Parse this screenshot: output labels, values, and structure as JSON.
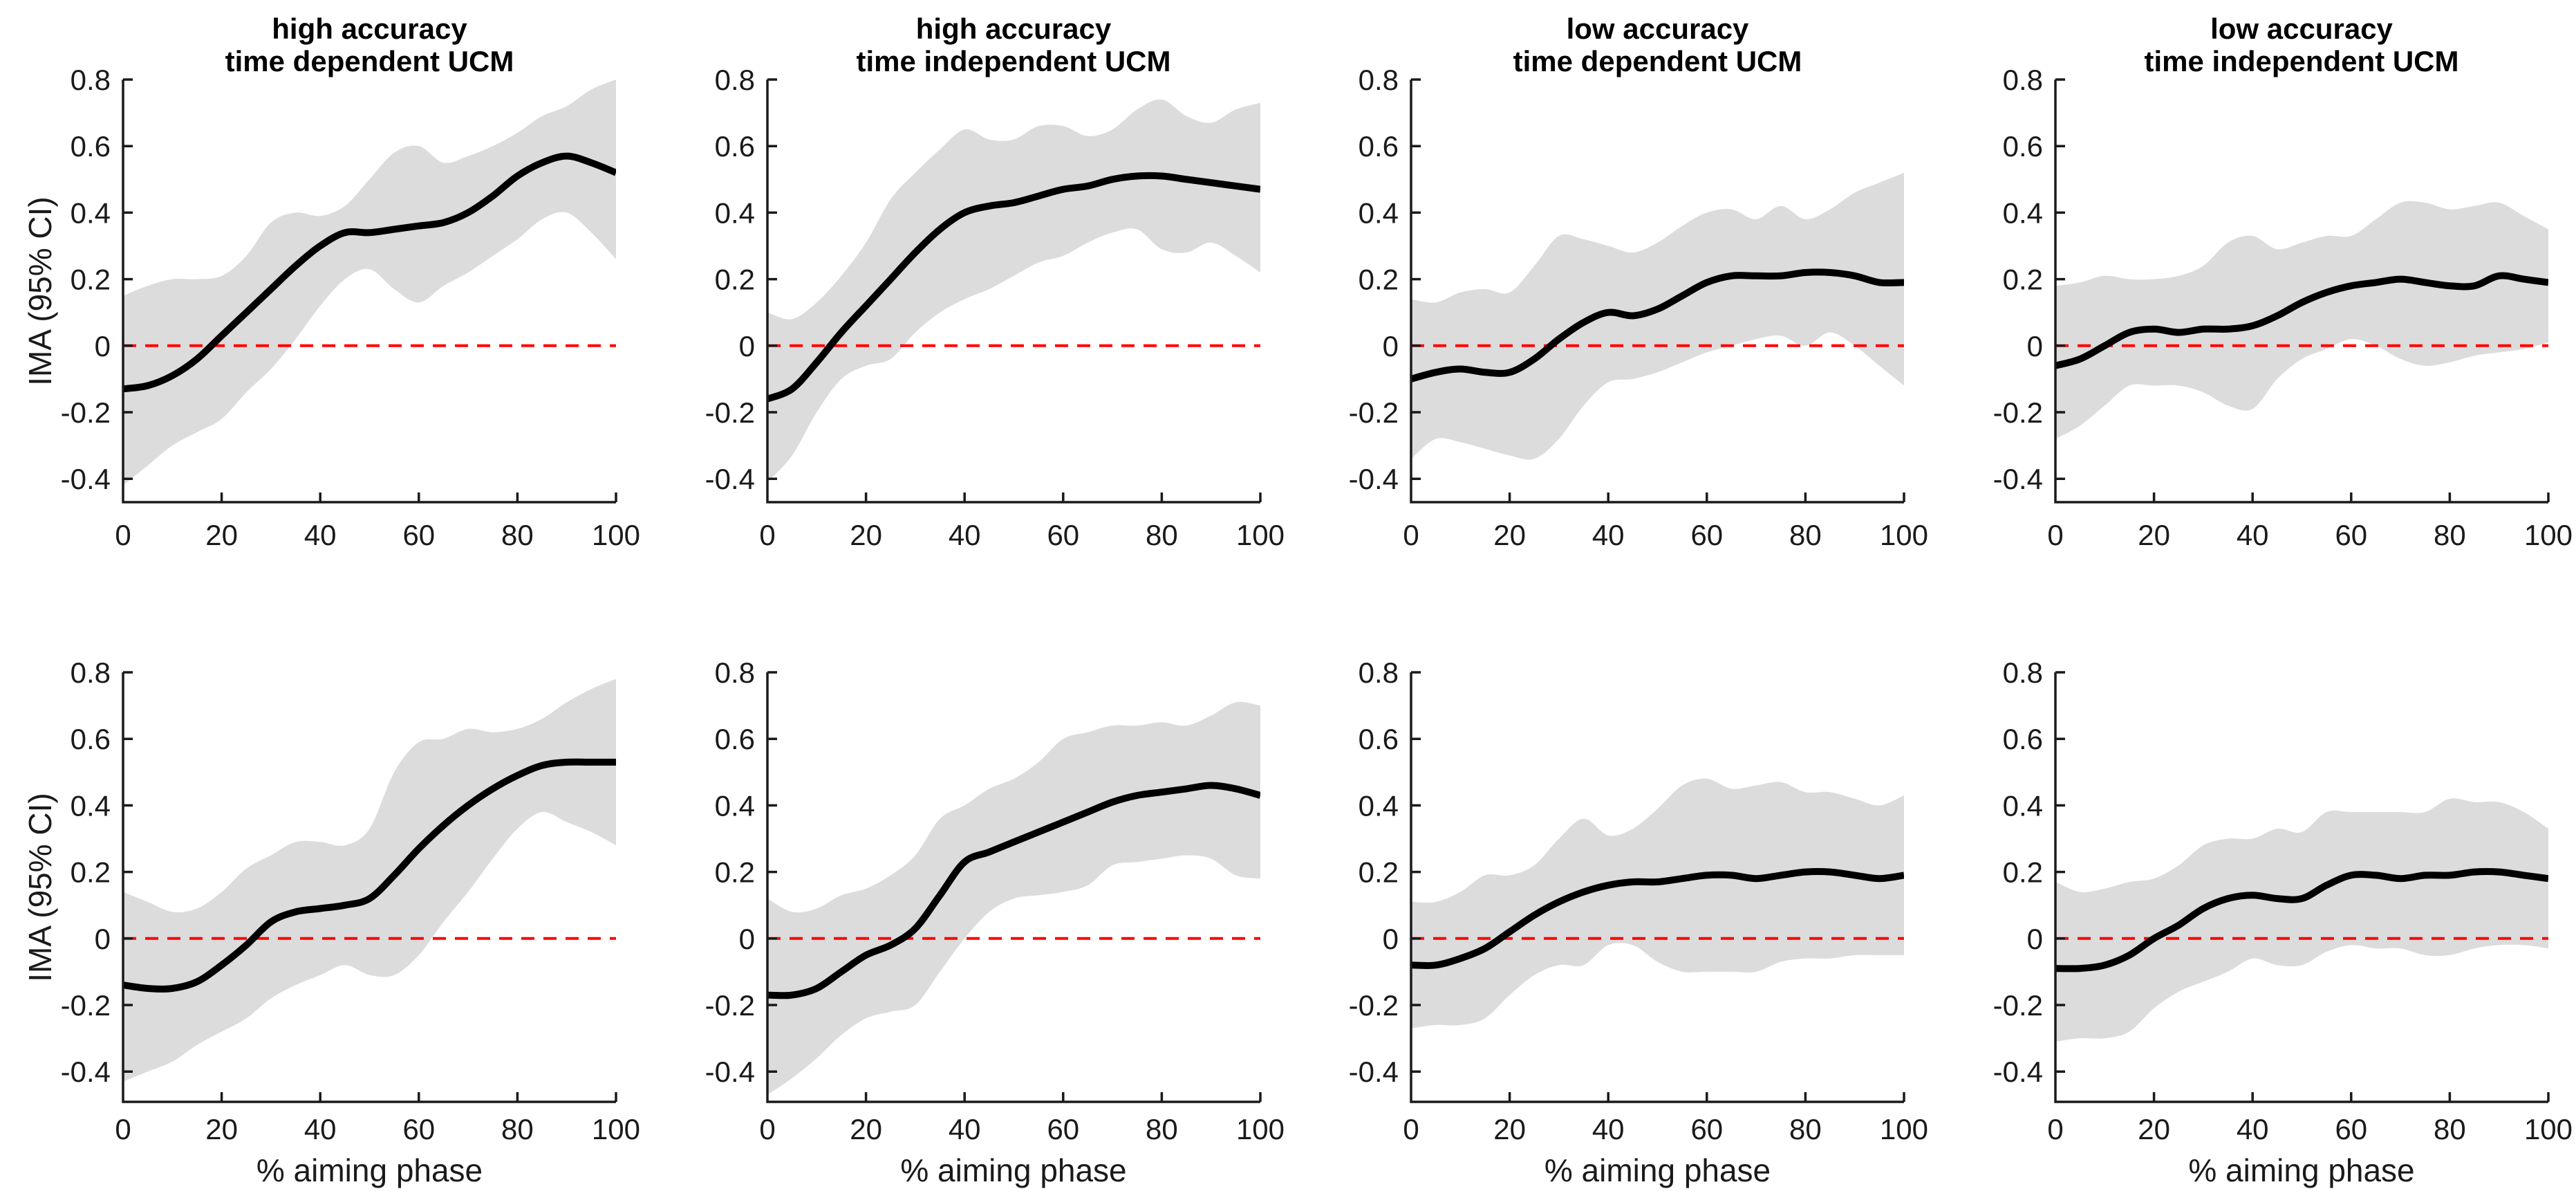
{
  "figure": {
    "ylabel": "IMA (95% CI)",
    "xlabel": "% aiming phase",
    "background": "#ffffff",
    "colors": {
      "band": "#dcdcdc",
      "mean": "#000000",
      "zero_line": "#ff0000",
      "axis": "#1a1a1a",
      "text": "#1a1a1a",
      "title": "#000000"
    },
    "axes": {
      "xlim": [
        0,
        100
      ],
      "ylim": [
        -0.47,
        0.8
      ],
      "xticks": [
        0,
        20,
        40,
        60,
        80,
        100
      ],
      "xtick_labels": [
        "0",
        "20",
        "40",
        "60",
        "80",
        "100"
      ],
      "yticks": [
        0.8,
        0.6,
        0.4,
        0.2,
        0,
        -0.2,
        -0.4
      ],
      "ytick_labels": [
        "0.8",
        "0.6",
        "0.4",
        "0.2",
        "0",
        "-0.2",
        "-0.4"
      ],
      "grid": false,
      "zero_reference": {
        "value": 0,
        "style": "dashed",
        "color": "#ff0000"
      }
    }
  },
  "chart_data": [
    {
      "id": "top-high-accuracy-time-dependent",
      "type": "area",
      "row": 0,
      "col": 0,
      "title_lines": [
        "high accuracy",
        "time dependent UCM"
      ],
      "x": [
        0,
        5,
        10,
        15,
        20,
        25,
        30,
        35,
        40,
        45,
        50,
        55,
        60,
        65,
        70,
        75,
        80,
        85,
        90,
        95,
        100
      ],
      "series": [
        {
          "name": "mean IMA",
          "values": [
            -0.13,
            -0.12,
            -0.09,
            -0.04,
            0.03,
            0.1,
            0.17,
            0.24,
            0.3,
            0.34,
            0.34,
            0.35,
            0.36,
            0.37,
            0.4,
            0.45,
            0.51,
            0.55,
            0.57,
            0.55,
            0.52
          ]
        },
        {
          "name": "95% CI upper",
          "values": [
            0.15,
            0.18,
            0.2,
            0.2,
            0.21,
            0.27,
            0.37,
            0.4,
            0.39,
            0.42,
            0.5,
            0.58,
            0.6,
            0.55,
            0.57,
            0.6,
            0.64,
            0.69,
            0.72,
            0.77,
            0.8
          ]
        },
        {
          "name": "95% CI lower",
          "values": [
            -0.42,
            -0.36,
            -0.3,
            -0.26,
            -0.22,
            -0.14,
            -0.07,
            0.02,
            0.12,
            0.2,
            0.23,
            0.17,
            0.13,
            0.18,
            0.22,
            0.27,
            0.32,
            0.38,
            0.4,
            0.34,
            0.26
          ]
        }
      ]
    },
    {
      "id": "top-high-accuracy-time-independent",
      "type": "area",
      "row": 0,
      "col": 1,
      "title_lines": [
        "high accuracy",
        "time independent UCM"
      ],
      "x": [
        0,
        5,
        10,
        15,
        20,
        25,
        30,
        35,
        40,
        45,
        50,
        55,
        60,
        65,
        70,
        75,
        80,
        85,
        90,
        95,
        100
      ],
      "series": [
        {
          "name": "mean IMA",
          "values": [
            -0.16,
            -0.13,
            -0.05,
            0.04,
            0.12,
            0.2,
            0.28,
            0.35,
            0.4,
            0.42,
            0.43,
            0.45,
            0.47,
            0.48,
            0.5,
            0.51,
            0.51,
            0.5,
            0.49,
            0.48,
            0.47
          ]
        },
        {
          "name": "95% CI upper",
          "values": [
            0.1,
            0.08,
            0.13,
            0.21,
            0.31,
            0.44,
            0.52,
            0.59,
            0.65,
            0.62,
            0.62,
            0.66,
            0.66,
            0.63,
            0.65,
            0.71,
            0.74,
            0.69,
            0.67,
            0.71,
            0.73
          ]
        },
        {
          "name": "95% CI lower",
          "values": [
            -0.41,
            -0.33,
            -0.2,
            -0.1,
            -0.06,
            -0.04,
            0.04,
            0.1,
            0.14,
            0.17,
            0.21,
            0.25,
            0.27,
            0.31,
            0.34,
            0.35,
            0.29,
            0.28,
            0.31,
            0.27,
            0.22
          ]
        }
      ]
    },
    {
      "id": "top-low-accuracy-time-dependent",
      "type": "area",
      "row": 0,
      "col": 2,
      "title_lines": [
        "low accuracy",
        "time dependent UCM"
      ],
      "x": [
        0,
        5,
        10,
        15,
        20,
        25,
        30,
        35,
        40,
        45,
        50,
        55,
        60,
        65,
        70,
        75,
        80,
        85,
        90,
        95,
        100
      ],
      "series": [
        {
          "name": "mean IMA",
          "values": [
            -0.1,
            -0.08,
            -0.07,
            -0.08,
            -0.08,
            -0.04,
            0.02,
            0.07,
            0.1,
            0.09,
            0.11,
            0.15,
            0.19,
            0.21,
            0.21,
            0.21,
            0.22,
            0.22,
            0.21,
            0.19,
            0.19
          ]
        },
        {
          "name": "95% CI upper",
          "values": [
            0.14,
            0.13,
            0.16,
            0.17,
            0.16,
            0.24,
            0.33,
            0.32,
            0.3,
            0.28,
            0.31,
            0.36,
            0.4,
            0.41,
            0.38,
            0.42,
            0.38,
            0.41,
            0.46,
            0.49,
            0.52
          ]
        },
        {
          "name": "95% CI lower",
          "values": [
            -0.34,
            -0.28,
            -0.29,
            -0.31,
            -0.33,
            -0.34,
            -0.28,
            -0.18,
            -0.11,
            -0.1,
            -0.08,
            -0.05,
            -0.02,
            0.0,
            0.02,
            0.03,
            0.0,
            0.04,
            0.0,
            -0.06,
            -0.12
          ]
        }
      ]
    },
    {
      "id": "top-low-accuracy-time-independent",
      "type": "area",
      "row": 0,
      "col": 3,
      "title_lines": [
        "low accuracy",
        "time independent UCM"
      ],
      "x": [
        0,
        5,
        10,
        15,
        20,
        25,
        30,
        35,
        40,
        45,
        50,
        55,
        60,
        65,
        70,
        75,
        80,
        85,
        90,
        95,
        100
      ],
      "series": [
        {
          "name": "mean IMA",
          "values": [
            -0.06,
            -0.04,
            0.0,
            0.04,
            0.05,
            0.04,
            0.05,
            0.05,
            0.06,
            0.09,
            0.13,
            0.16,
            0.18,
            0.19,
            0.2,
            0.19,
            0.18,
            0.18,
            0.21,
            0.2,
            0.19
          ]
        },
        {
          "name": "95% CI upper",
          "values": [
            0.18,
            0.19,
            0.21,
            0.2,
            0.2,
            0.21,
            0.24,
            0.31,
            0.33,
            0.29,
            0.31,
            0.33,
            0.33,
            0.38,
            0.43,
            0.43,
            0.41,
            0.42,
            0.43,
            0.39,
            0.35
          ]
        },
        {
          "name": "95% CI lower",
          "values": [
            -0.28,
            -0.24,
            -0.18,
            -0.12,
            -0.12,
            -0.12,
            -0.14,
            -0.18,
            -0.19,
            -0.1,
            -0.04,
            -0.01,
            0.02,
            0.0,
            -0.04,
            -0.06,
            -0.05,
            -0.03,
            -0.02,
            -0.01,
            0.01
          ]
        }
      ]
    },
    {
      "id": "bottom-high-accuracy-time-dependent",
      "type": "area",
      "row": 1,
      "col": 0,
      "x": [
        0,
        5,
        10,
        15,
        20,
        25,
        30,
        35,
        40,
        45,
        50,
        55,
        60,
        65,
        70,
        75,
        80,
        85,
        90,
        95,
        100
      ],
      "series": [
        {
          "name": "mean IMA",
          "values": [
            -0.14,
            -0.15,
            -0.15,
            -0.13,
            -0.08,
            -0.02,
            0.05,
            0.08,
            0.09,
            0.1,
            0.12,
            0.19,
            0.27,
            0.34,
            0.4,
            0.45,
            0.49,
            0.52,
            0.53,
            0.53,
            0.53
          ]
        },
        {
          "name": "95% CI upper",
          "values": [
            0.14,
            0.11,
            0.08,
            0.09,
            0.14,
            0.21,
            0.25,
            0.29,
            0.29,
            0.28,
            0.33,
            0.5,
            0.59,
            0.6,
            0.63,
            0.62,
            0.63,
            0.66,
            0.71,
            0.75,
            0.78
          ]
        },
        {
          "name": "95% CI lower",
          "values": [
            -0.43,
            -0.4,
            -0.37,
            -0.32,
            -0.28,
            -0.24,
            -0.18,
            -0.14,
            -0.11,
            -0.08,
            -0.11,
            -0.11,
            -0.05,
            0.05,
            0.14,
            0.24,
            0.33,
            0.38,
            0.35,
            0.32,
            0.28
          ]
        }
      ]
    },
    {
      "id": "bottom-high-accuracy-time-independent",
      "type": "area",
      "row": 1,
      "col": 1,
      "x": [
        0,
        5,
        10,
        15,
        20,
        25,
        30,
        35,
        40,
        45,
        50,
        55,
        60,
        65,
        70,
        75,
        80,
        85,
        90,
        95,
        100
      ],
      "series": [
        {
          "name": "mean IMA",
          "values": [
            -0.17,
            -0.17,
            -0.15,
            -0.1,
            -0.05,
            -0.02,
            0.03,
            0.13,
            0.23,
            0.26,
            0.29,
            0.32,
            0.35,
            0.38,
            0.41,
            0.43,
            0.44,
            0.45,
            0.46,
            0.45,
            0.43
          ]
        },
        {
          "name": "95% CI upper",
          "values": [
            0.12,
            0.08,
            0.09,
            0.13,
            0.15,
            0.19,
            0.25,
            0.36,
            0.4,
            0.45,
            0.48,
            0.53,
            0.6,
            0.62,
            0.64,
            0.64,
            0.65,
            0.64,
            0.67,
            0.71,
            0.7
          ]
        },
        {
          "name": "95% CI lower",
          "values": [
            -0.47,
            -0.42,
            -0.36,
            -0.29,
            -0.24,
            -0.22,
            -0.2,
            -0.1,
            0.0,
            0.08,
            0.12,
            0.13,
            0.14,
            0.16,
            0.22,
            0.23,
            0.24,
            0.25,
            0.24,
            0.19,
            0.18
          ]
        }
      ]
    },
    {
      "id": "bottom-low-accuracy-time-dependent",
      "type": "area",
      "row": 1,
      "col": 2,
      "x": [
        0,
        5,
        10,
        15,
        20,
        25,
        30,
        35,
        40,
        45,
        50,
        55,
        60,
        65,
        70,
        75,
        80,
        85,
        90,
        95,
        100
      ],
      "series": [
        {
          "name": "mean IMA",
          "values": [
            -0.08,
            -0.08,
            -0.06,
            -0.03,
            0.02,
            0.07,
            0.11,
            0.14,
            0.16,
            0.17,
            0.17,
            0.18,
            0.19,
            0.19,
            0.18,
            0.19,
            0.2,
            0.2,
            0.19,
            0.18,
            0.19
          ]
        },
        {
          "name": "95% CI upper",
          "values": [
            0.11,
            0.11,
            0.14,
            0.19,
            0.19,
            0.22,
            0.3,
            0.36,
            0.31,
            0.33,
            0.39,
            0.46,
            0.48,
            0.45,
            0.46,
            0.47,
            0.44,
            0.44,
            0.42,
            0.4,
            0.43
          ]
        },
        {
          "name": "95% CI lower",
          "values": [
            -0.27,
            -0.26,
            -0.26,
            -0.24,
            -0.17,
            -0.11,
            -0.08,
            -0.08,
            -0.02,
            -0.02,
            -0.07,
            -0.1,
            -0.1,
            -0.1,
            -0.1,
            -0.07,
            -0.06,
            -0.06,
            -0.05,
            -0.05,
            -0.05
          ]
        }
      ]
    },
    {
      "id": "bottom-low-accuracy-time-independent",
      "type": "area",
      "row": 1,
      "col": 3,
      "x": [
        0,
        5,
        10,
        15,
        20,
        25,
        30,
        35,
        40,
        45,
        50,
        55,
        60,
        65,
        70,
        75,
        80,
        85,
        90,
        95,
        100
      ],
      "series": [
        {
          "name": "mean IMA",
          "values": [
            -0.09,
            -0.09,
            -0.08,
            -0.05,
            0.0,
            0.04,
            0.09,
            0.12,
            0.13,
            0.12,
            0.12,
            0.16,
            0.19,
            0.19,
            0.18,
            0.19,
            0.19,
            0.2,
            0.2,
            0.19,
            0.18
          ]
        },
        {
          "name": "95% CI upper",
          "values": [
            0.17,
            0.14,
            0.15,
            0.17,
            0.18,
            0.22,
            0.28,
            0.3,
            0.3,
            0.33,
            0.32,
            0.38,
            0.38,
            0.38,
            0.38,
            0.38,
            0.42,
            0.41,
            0.41,
            0.38,
            0.33
          ]
        },
        {
          "name": "95% CI lower",
          "values": [
            -0.31,
            -0.3,
            -0.3,
            -0.28,
            -0.21,
            -0.16,
            -0.13,
            -0.1,
            -0.06,
            -0.08,
            -0.08,
            -0.04,
            -0.02,
            -0.03,
            -0.03,
            -0.05,
            -0.05,
            -0.03,
            -0.02,
            -0.02,
            -0.03
          ]
        }
      ]
    }
  ]
}
